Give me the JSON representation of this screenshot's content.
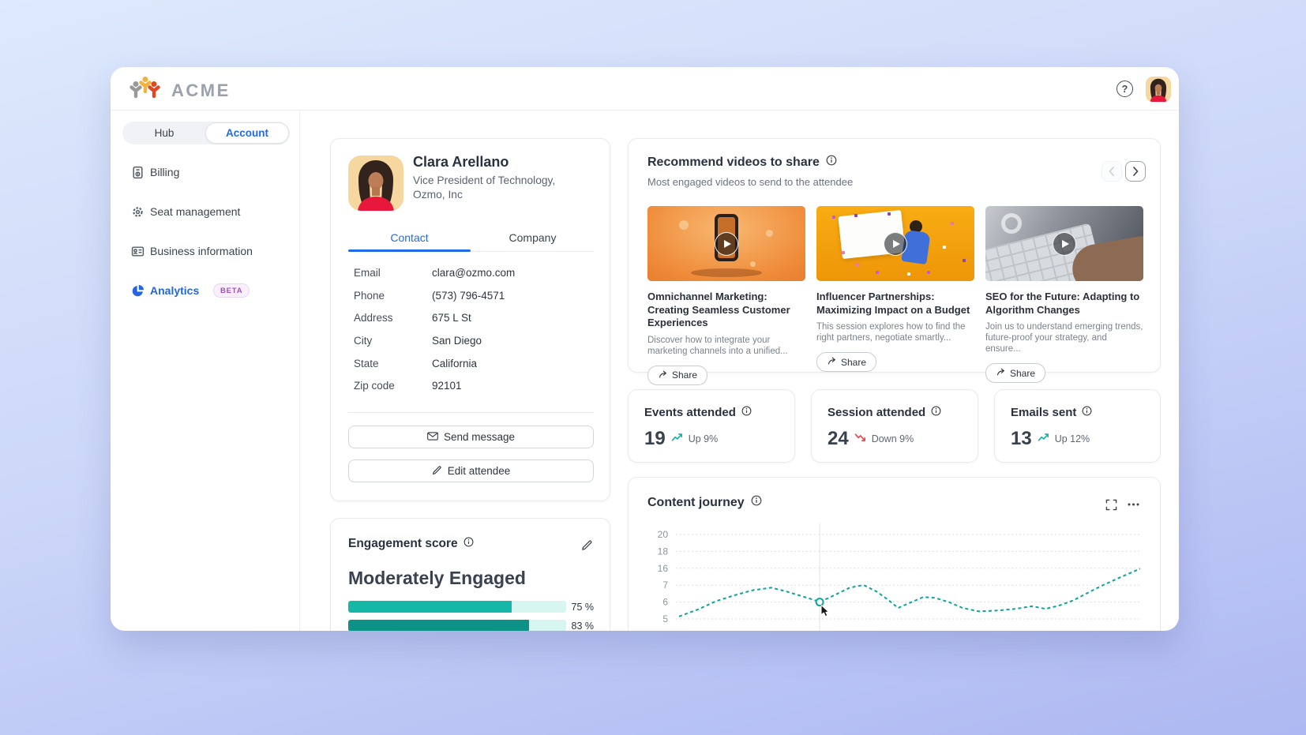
{
  "app": {
    "brand": "ACME",
    "help_label": "?"
  },
  "sidebar": {
    "segmented": {
      "hub": "Hub",
      "account": "Account"
    },
    "items": [
      {
        "label": "Billing",
        "icon": "invoice-icon"
      },
      {
        "label": "Seat management",
        "icon": "gear-icon"
      },
      {
        "label": "Business information",
        "icon": "id-card-icon"
      },
      {
        "label": "Analytics",
        "icon": "pie-chart-icon",
        "badge": "BETA",
        "active": true
      }
    ]
  },
  "profile": {
    "name": "Clara Arellano",
    "title_line1": "Vice President of Technology,",
    "title_line2": "Ozmo, Inc",
    "tabs": {
      "contact": "Contact",
      "company": "Company"
    },
    "fields": [
      {
        "label": "Email",
        "value": "clara@ozmo.com"
      },
      {
        "label": "Phone",
        "value": "(573) 796-4571"
      },
      {
        "label": "Address",
        "value": "675 L St"
      },
      {
        "label": "City",
        "value": "San Diego"
      },
      {
        "label": "State",
        "value": "California"
      },
      {
        "label": "Zip code",
        "value": "92101"
      }
    ],
    "actions": {
      "send_message": "Send message",
      "edit_attendee": "Edit attendee"
    }
  },
  "engagement": {
    "title": "Engagement score",
    "level": "Moderately Engaged",
    "bars": [
      {
        "percent": 75,
        "label": "75 %",
        "color": "#15b8a7"
      },
      {
        "percent": 83,
        "label": "83 %",
        "color": "#0c9287"
      }
    ]
  },
  "videos": {
    "title": "Recommend videos to share",
    "subtitle": "Most engaged videos to send to the attendee",
    "share_label": "Share",
    "cards": [
      {
        "title": "Omnichannel Marketing: Creating Seamless Customer Experiences",
        "description": "Discover how to integrate your marketing channels into a unified..."
      },
      {
        "title": "Influencer Partnerships: Maximizing Impact on a Budget",
        "description": "This session explores how to find the right partners, negotiate smartly..."
      },
      {
        "title": "SEO for the Future: Adapting to Algorithm Changes",
        "description": "Join us to understand emerging trends, future-proof your strategy, and ensure..."
      }
    ]
  },
  "stats": [
    {
      "title": "Events attended",
      "value": "19",
      "trend": "up",
      "trend_label": "Up 9%"
    },
    {
      "title": "Session attended",
      "value": "24",
      "trend": "down",
      "trend_label": "Down 9%"
    },
    {
      "title": "Emails sent",
      "value": "13",
      "trend": "up",
      "trend_label": "Up 12%"
    }
  ],
  "content_journey": {
    "title": "Content journey",
    "chart_data": {
      "type": "line",
      "style": "dashed",
      "color": "#0da49a",
      "grid": true,
      "y_ticks": [
        20,
        18,
        16,
        7,
        6,
        5
      ],
      "marker_index": 9,
      "points": [
        [
          0.0,
          5.15
        ],
        [
          0.04,
          5.55
        ],
        [
          0.08,
          6.05
        ],
        [
          0.12,
          6.4
        ],
        [
          0.16,
          6.7
        ],
        [
          0.2,
          6.85
        ],
        [
          0.23,
          6.65
        ],
        [
          0.26,
          6.4
        ],
        [
          0.29,
          6.15
        ],
        [
          0.305,
          6.0
        ],
        [
          0.34,
          6.45
        ],
        [
          0.37,
          6.85
        ],
        [
          0.4,
          7.1
        ],
        [
          0.43,
          6.6
        ],
        [
          0.455,
          6.1
        ],
        [
          0.475,
          5.65
        ],
        [
          0.5,
          5.95
        ],
        [
          0.53,
          6.3
        ],
        [
          0.555,
          6.25
        ],
        [
          0.585,
          6.0
        ],
        [
          0.615,
          5.65
        ],
        [
          0.65,
          5.45
        ],
        [
          0.69,
          5.5
        ],
        [
          0.73,
          5.6
        ],
        [
          0.765,
          5.75
        ],
        [
          0.795,
          5.6
        ],
        [
          0.825,
          5.8
        ],
        [
          0.855,
          6.1
        ],
        [
          0.89,
          6.6
        ],
        [
          0.92,
          7.1
        ],
        [
          0.96,
          11.5
        ],
        [
          1.0,
          15.8
        ]
      ]
    }
  },
  "colors": {
    "accent_blue": "#1f6be8",
    "teal": "#15b8a7",
    "teal_dark": "#0c9287",
    "trend_red": "#e5484d",
    "beta_purple": "#a14fc4"
  }
}
